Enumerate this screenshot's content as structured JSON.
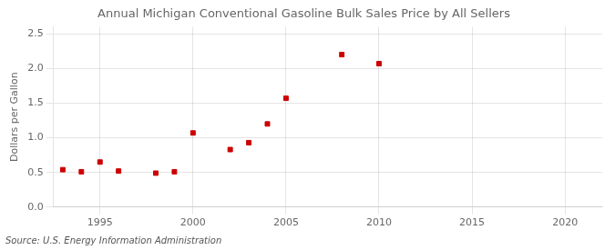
{
  "chart_data": {
    "type": "scatter",
    "title": "Annual Michigan Conventional Gasoline Bulk Sales Price by All Sellers",
    "ylabel": "Dollars per Gallon",
    "source": "Source: U.S. Energy Information Administration",
    "x": [
      1993,
      1994,
      1995,
      1996,
      1998,
      1999,
      2000,
      2002,
      2003,
      2004,
      2005,
      2008,
      2010
    ],
    "values": [
      0.54,
      0.51,
      0.65,
      0.52,
      0.49,
      0.51,
      1.07,
      0.83,
      0.93,
      1.2,
      1.57,
      2.2,
      2.07
    ],
    "color": "#cc0000",
    "marker": "square",
    "xlim": [
      1992.5,
      2022
    ],
    "ylim": [
      0.0,
      2.6
    ],
    "xticks": [
      1995,
      2000,
      2005,
      2010,
      2015,
      2020
    ],
    "yticks": [
      {
        "value": 0.0,
        "label": "0.0"
      },
      0.5,
      {
        "value": 1.0,
        "label": "1.0"
      },
      1.5,
      {
        "value": 2.0,
        "label": "2.0"
      },
      2.5
    ],
    "grid": true
  }
}
